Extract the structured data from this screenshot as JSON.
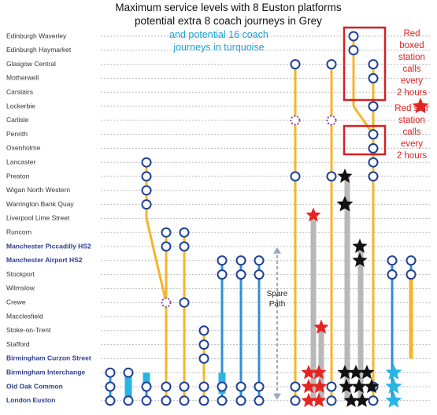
{
  "title_lines": [
    "Maximum service levels with 8 Euston platforms",
    "potential extra 8 coach journeys in Grey"
  ],
  "turquoise_note": [
    "and potential 16 coach",
    "journeys in turquoise"
  ],
  "red_box_note": [
    "Red",
    "boxed",
    "station",
    "calls",
    "every",
    "2 hours"
  ],
  "red_star_note": [
    "Red star",
    "station",
    "calls",
    "every",
    "2 hours"
  ],
  "spare_path": [
    "Spare",
    "Path"
  ],
  "stations": [
    "Edinburgh Waverley",
    "Edinburgh Haymarket",
    "Glasgow Central",
    "Motherwell",
    "Carstairs",
    "Lockerbie",
    "Carlisle",
    "Penrith",
    "Oxenholme",
    "Lancaster",
    "Preston",
    "Wigan North Western",
    "Warrington Bank Quay",
    "Liverpool Lime Street",
    "Runcorn",
    "Manchester Piccadilly HS2",
    "Manchester Airport HS2",
    "Stockport",
    "Wilmslow",
    "Crewe",
    "Macclesfield",
    "Stoke-on-Trent",
    "Stafford",
    "Birmingham Curzon Street",
    "Birmingham Interchange",
    "Old Oak Common",
    "London Euston"
  ]
}
